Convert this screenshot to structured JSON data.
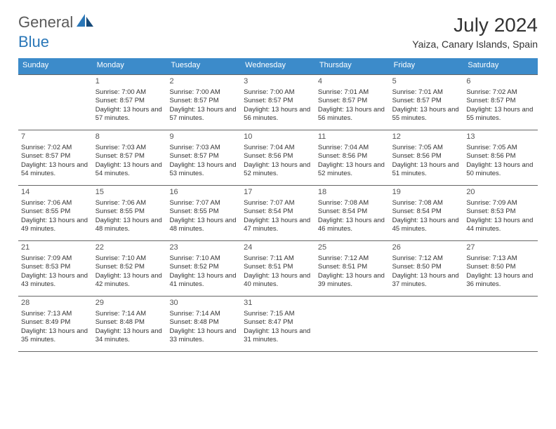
{
  "brand": {
    "part1": "General",
    "part2": "Blue"
  },
  "title": {
    "month": "July 2024",
    "location": "Yaiza, Canary Islands, Spain"
  },
  "colors": {
    "header_bg": "#3c8bca",
    "rule": "#666666",
    "brand_blue": "#2a77b8"
  },
  "layout": {
    "columns": 7,
    "rows": 5,
    "start_offset": 1
  },
  "dow": [
    "Sunday",
    "Monday",
    "Tuesday",
    "Wednesday",
    "Thursday",
    "Friday",
    "Saturday"
  ],
  "days": [
    {
      "n": 1,
      "sunrise": "7:00 AM",
      "sunset": "8:57 PM",
      "daylight": "13 hours and 57 minutes."
    },
    {
      "n": 2,
      "sunrise": "7:00 AM",
      "sunset": "8:57 PM",
      "daylight": "13 hours and 57 minutes."
    },
    {
      "n": 3,
      "sunrise": "7:00 AM",
      "sunset": "8:57 PM",
      "daylight": "13 hours and 56 minutes."
    },
    {
      "n": 4,
      "sunrise": "7:01 AM",
      "sunset": "8:57 PM",
      "daylight": "13 hours and 56 minutes."
    },
    {
      "n": 5,
      "sunrise": "7:01 AM",
      "sunset": "8:57 PM",
      "daylight": "13 hours and 55 minutes."
    },
    {
      "n": 6,
      "sunrise": "7:02 AM",
      "sunset": "8:57 PM",
      "daylight": "13 hours and 55 minutes."
    },
    {
      "n": 7,
      "sunrise": "7:02 AM",
      "sunset": "8:57 PM",
      "daylight": "13 hours and 54 minutes."
    },
    {
      "n": 8,
      "sunrise": "7:03 AM",
      "sunset": "8:57 PM",
      "daylight": "13 hours and 54 minutes."
    },
    {
      "n": 9,
      "sunrise": "7:03 AM",
      "sunset": "8:57 PM",
      "daylight": "13 hours and 53 minutes."
    },
    {
      "n": 10,
      "sunrise": "7:04 AM",
      "sunset": "8:56 PM",
      "daylight": "13 hours and 52 minutes."
    },
    {
      "n": 11,
      "sunrise": "7:04 AM",
      "sunset": "8:56 PM",
      "daylight": "13 hours and 52 minutes."
    },
    {
      "n": 12,
      "sunrise": "7:05 AM",
      "sunset": "8:56 PM",
      "daylight": "13 hours and 51 minutes."
    },
    {
      "n": 13,
      "sunrise": "7:05 AM",
      "sunset": "8:56 PM",
      "daylight": "13 hours and 50 minutes."
    },
    {
      "n": 14,
      "sunrise": "7:06 AM",
      "sunset": "8:55 PM",
      "daylight": "13 hours and 49 minutes."
    },
    {
      "n": 15,
      "sunrise": "7:06 AM",
      "sunset": "8:55 PM",
      "daylight": "13 hours and 48 minutes."
    },
    {
      "n": 16,
      "sunrise": "7:07 AM",
      "sunset": "8:55 PM",
      "daylight": "13 hours and 48 minutes."
    },
    {
      "n": 17,
      "sunrise": "7:07 AM",
      "sunset": "8:54 PM",
      "daylight": "13 hours and 47 minutes."
    },
    {
      "n": 18,
      "sunrise": "7:08 AM",
      "sunset": "8:54 PM",
      "daylight": "13 hours and 46 minutes."
    },
    {
      "n": 19,
      "sunrise": "7:08 AM",
      "sunset": "8:54 PM",
      "daylight": "13 hours and 45 minutes."
    },
    {
      "n": 20,
      "sunrise": "7:09 AM",
      "sunset": "8:53 PM",
      "daylight": "13 hours and 44 minutes."
    },
    {
      "n": 21,
      "sunrise": "7:09 AM",
      "sunset": "8:53 PM",
      "daylight": "13 hours and 43 minutes."
    },
    {
      "n": 22,
      "sunrise": "7:10 AM",
      "sunset": "8:52 PM",
      "daylight": "13 hours and 42 minutes."
    },
    {
      "n": 23,
      "sunrise": "7:10 AM",
      "sunset": "8:52 PM",
      "daylight": "13 hours and 41 minutes."
    },
    {
      "n": 24,
      "sunrise": "7:11 AM",
      "sunset": "8:51 PM",
      "daylight": "13 hours and 40 minutes."
    },
    {
      "n": 25,
      "sunrise": "7:12 AM",
      "sunset": "8:51 PM",
      "daylight": "13 hours and 39 minutes."
    },
    {
      "n": 26,
      "sunrise": "7:12 AM",
      "sunset": "8:50 PM",
      "daylight": "13 hours and 37 minutes."
    },
    {
      "n": 27,
      "sunrise": "7:13 AM",
      "sunset": "8:50 PM",
      "daylight": "13 hours and 36 minutes."
    },
    {
      "n": 28,
      "sunrise": "7:13 AM",
      "sunset": "8:49 PM",
      "daylight": "13 hours and 35 minutes."
    },
    {
      "n": 29,
      "sunrise": "7:14 AM",
      "sunset": "8:48 PM",
      "daylight": "13 hours and 34 minutes."
    },
    {
      "n": 30,
      "sunrise": "7:14 AM",
      "sunset": "8:48 PM",
      "daylight": "13 hours and 33 minutes."
    },
    {
      "n": 31,
      "sunrise": "7:15 AM",
      "sunset": "8:47 PM",
      "daylight": "13 hours and 31 minutes."
    }
  ],
  "labels": {
    "sunrise": "Sunrise:",
    "sunset": "Sunset:",
    "daylight": "Daylight:"
  }
}
